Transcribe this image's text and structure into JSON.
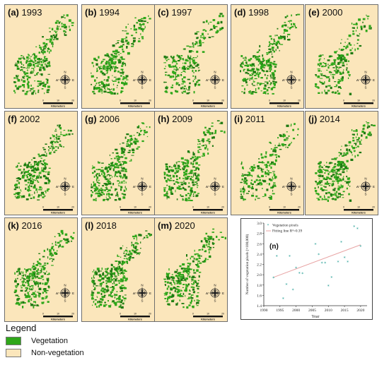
{
  "panels": [
    {
      "letter": "a",
      "year": "1993",
      "density": 0.82
    },
    {
      "letter": "b",
      "year": "1994",
      "density": 0.9
    },
    {
      "letter": "c",
      "year": "1997",
      "density": 0.7
    },
    {
      "letter": "d",
      "year": "1998",
      "density": 0.86
    },
    {
      "letter": "e",
      "year": "2000",
      "density": 0.66
    },
    {
      "letter": "f",
      "year": "2002",
      "density": 0.8
    },
    {
      "letter": "g",
      "year": "2006",
      "density": 0.95
    },
    {
      "letter": "h",
      "year": "2009",
      "density": 0.84
    },
    {
      "letter": "i",
      "year": "2011",
      "density": 0.64
    },
    {
      "letter": "j",
      "year": "2014",
      "density": 0.93
    },
    {
      "letter": "k",
      "year": "2016",
      "density": 0.86
    },
    {
      "letter": "l",
      "year": "2018",
      "density": 1.0
    },
    {
      "letter": "m",
      "year": "2020",
      "density": 0.9
    }
  ],
  "map_elements": {
    "compass": {
      "n": "N",
      "s": "S",
      "e": "E",
      "w": "W"
    },
    "scale_ticks": [
      "0",
      "10",
      "20"
    ],
    "scale_unit": "Kilometers"
  },
  "legend": {
    "title": "Legend",
    "items": [
      {
        "label": "Vegetation",
        "color": "#2fa71a"
      },
      {
        "label": "Non-vegetation",
        "color": "#fbe6bb"
      }
    ]
  },
  "colors": {
    "background": "#fbe6bb",
    "vegetation": "#2fa71a",
    "vegetation_dark": "#1f7a12",
    "fit_line": "#e8a3a3",
    "points": "#2aa198"
  },
  "chart_data": {
    "type": "scatter",
    "panel_label": "(n)",
    "xlabel": "Year",
    "ylabel": "Number of vegetation pixels (×100,000)",
    "xlim": [
      1990,
      2022
    ],
    "ylim": [
      1.4,
      3.0
    ],
    "xticks": [
      "1990",
      "1995",
      "2000",
      "2005",
      "2010",
      "2015",
      "2020"
    ],
    "yticks": [
      "1.4",
      "1.6",
      "1.8",
      "2.0",
      "2.2",
      "2.4",
      "2.6",
      "2.8",
      "3.0"
    ],
    "series": [
      {
        "name": "Vegetation pixels",
        "x": [
          1993,
          1994,
          1996,
          1997,
          1998,
          1999,
          2000,
          2001,
          2002,
          2006,
          2007,
          2008,
          2009,
          2010,
          2011,
          2013,
          2014,
          2015,
          2016,
          2018,
          2019,
          2020
        ],
        "y": [
          1.93,
          2.35,
          1.53,
          1.8,
          2.35,
          1.7,
          2.12,
          2.02,
          2.01,
          2.58,
          2.38,
          2.22,
          2.22,
          1.77,
          1.94,
          2.24,
          2.62,
          2.32,
          2.24,
          2.92,
          2.88,
          2.54
        ]
      }
    ],
    "fit": {
      "name": "Fitting line  R²=0.39",
      "x": [
        1993,
        2020
      ],
      "y": [
        1.95,
        2.58
      ]
    },
    "legend_position": "top-left"
  }
}
